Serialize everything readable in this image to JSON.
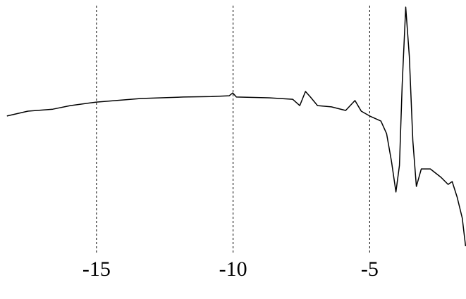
{
  "chart_data": {
    "type": "line",
    "x": [
      -18.28,
      -17.51,
      -16.6,
      -15.96,
      -15.0,
      -13.37,
      -11.82,
      -10.79,
      -10.14,
      -10.01,
      -9.88,
      -8.72,
      -7.82,
      -7.56,
      -7.35,
      -7.17,
      -6.91,
      -6.4,
      -5.88,
      -5.54,
      -5.31,
      -5.0,
      -4.59,
      -4.38,
      -4.2,
      -4.04,
      -3.91,
      -3.81,
      -3.68,
      -3.55,
      -3.42,
      -3.29,
      -3.11,
      -2.78,
      -2.39,
      -2.13,
      -1.98,
      -1.8,
      -1.61,
      -1.49
    ],
    "values": [
      54.2,
      56.1,
      56.9,
      58.3,
      59.7,
      61.1,
      61.7,
      61.9,
      62.2,
      63.3,
      61.7,
      61.4,
      60.8,
      58.3,
      63.9,
      61.7,
      58.3,
      57.8,
      56.4,
      60.3,
      56.1,
      54.2,
      52.2,
      47.2,
      36.1,
      24.2,
      34.7,
      66.7,
      97.2,
      77.8,
      44.4,
      26.4,
      33.3,
      33.3,
      30.0,
      27.2,
      28.3,
      22.2,
      13.9,
      2.8
    ],
    "color": "#000000",
    "xlim": [
      -18.3,
      -1.5
    ],
    "xticks": [
      -15,
      -10,
      -5
    ],
    "ylim": [
      0,
      100
    ],
    "grid": true
  }
}
